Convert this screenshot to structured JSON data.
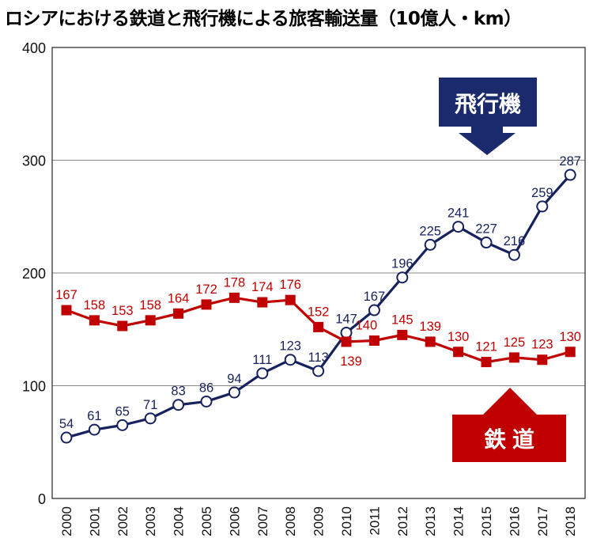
{
  "chart_data": {
    "type": "line",
    "title": "ロシアにおける鉄道と飛行機による旅客輸送量（10億人・km）",
    "xlabel": "",
    "ylabel": "",
    "categories": [
      "2000",
      "2001",
      "2002",
      "2003",
      "2004",
      "2005",
      "2006",
      "2007",
      "2008",
      "2009",
      "2010",
      "2011",
      "2012",
      "2013",
      "2014",
      "2015",
      "2016",
      "2017",
      "2018"
    ],
    "ylim": [
      0,
      400
    ],
    "yticks": [
      0,
      100,
      200,
      300,
      400
    ],
    "grid": true,
    "series": [
      {
        "name": "飛行機",
        "color": "#16215e",
        "marker": "circle-open",
        "values": [
          54,
          61,
          65,
          71,
          83,
          86,
          94,
          111,
          123,
          113,
          147,
          167,
          196,
          225,
          241,
          227,
          216,
          259,
          287
        ]
      },
      {
        "name": "鉄道",
        "color": "#c00000",
        "marker": "square-filled",
        "values": [
          167,
          158,
          153,
          158,
          164,
          172,
          178,
          174,
          176,
          152,
          139,
          140,
          145,
          139,
          130,
          121,
          125,
          123,
          130
        ]
      }
    ],
    "callouts": [
      {
        "label": "飛行機",
        "color": "#1a2a6c",
        "direction": "down",
        "series": 0
      },
      {
        "label": "鉄 道",
        "color": "#c00000",
        "direction": "up",
        "series": 1
      }
    ]
  }
}
